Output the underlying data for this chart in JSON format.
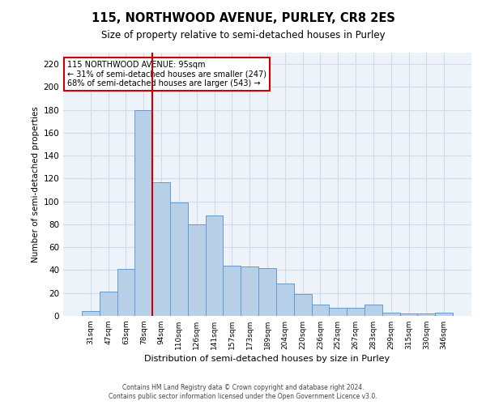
{
  "title": "115, NORTHWOOD AVENUE, PURLEY, CR8 2ES",
  "subtitle": "Size of property relative to semi-detached houses in Purley",
  "xlabel": "Distribution of semi-detached houses by size in Purley",
  "ylabel": "Number of semi-detached properties",
  "categories": [
    "31sqm",
    "47sqm",
    "63sqm",
    "78sqm",
    "94sqm",
    "110sqm",
    "126sqm",
    "141sqm",
    "157sqm",
    "173sqm",
    "189sqm",
    "204sqm",
    "220sqm",
    "236sqm",
    "252sqm",
    "267sqm",
    "283sqm",
    "299sqm",
    "315sqm",
    "330sqm",
    "346sqm"
  ],
  "values": [
    4,
    21,
    41,
    180,
    117,
    99,
    80,
    88,
    44,
    43,
    42,
    28,
    19,
    10,
    7,
    7,
    10,
    3,
    2,
    2,
    3
  ],
  "bar_color": "#b8cfe8",
  "bar_edge_color": "#6699cc",
  "property_line_index": 3.5,
  "property_line_color": "#cc0000",
  "annotation_box_color": "#cc0000",
  "annotation_text_line1": "115 NORTHWOOD AVENUE: 95sqm",
  "annotation_text_line2": "← 31% of semi-detached houses are smaller (247)",
  "annotation_text_line3": "68% of semi-detached houses are larger (543) →",
  "ylim": [
    0,
    230
  ],
  "yticks": [
    0,
    20,
    40,
    60,
    80,
    100,
    120,
    140,
    160,
    180,
    200,
    220
  ],
  "grid_color": "#d0daea",
  "background_color": "#eef2f9",
  "footer_line1": "Contains HM Land Registry data © Crown copyright and database right 2024.",
  "footer_line2": "Contains public sector information licensed under the Open Government Licence v3.0."
}
